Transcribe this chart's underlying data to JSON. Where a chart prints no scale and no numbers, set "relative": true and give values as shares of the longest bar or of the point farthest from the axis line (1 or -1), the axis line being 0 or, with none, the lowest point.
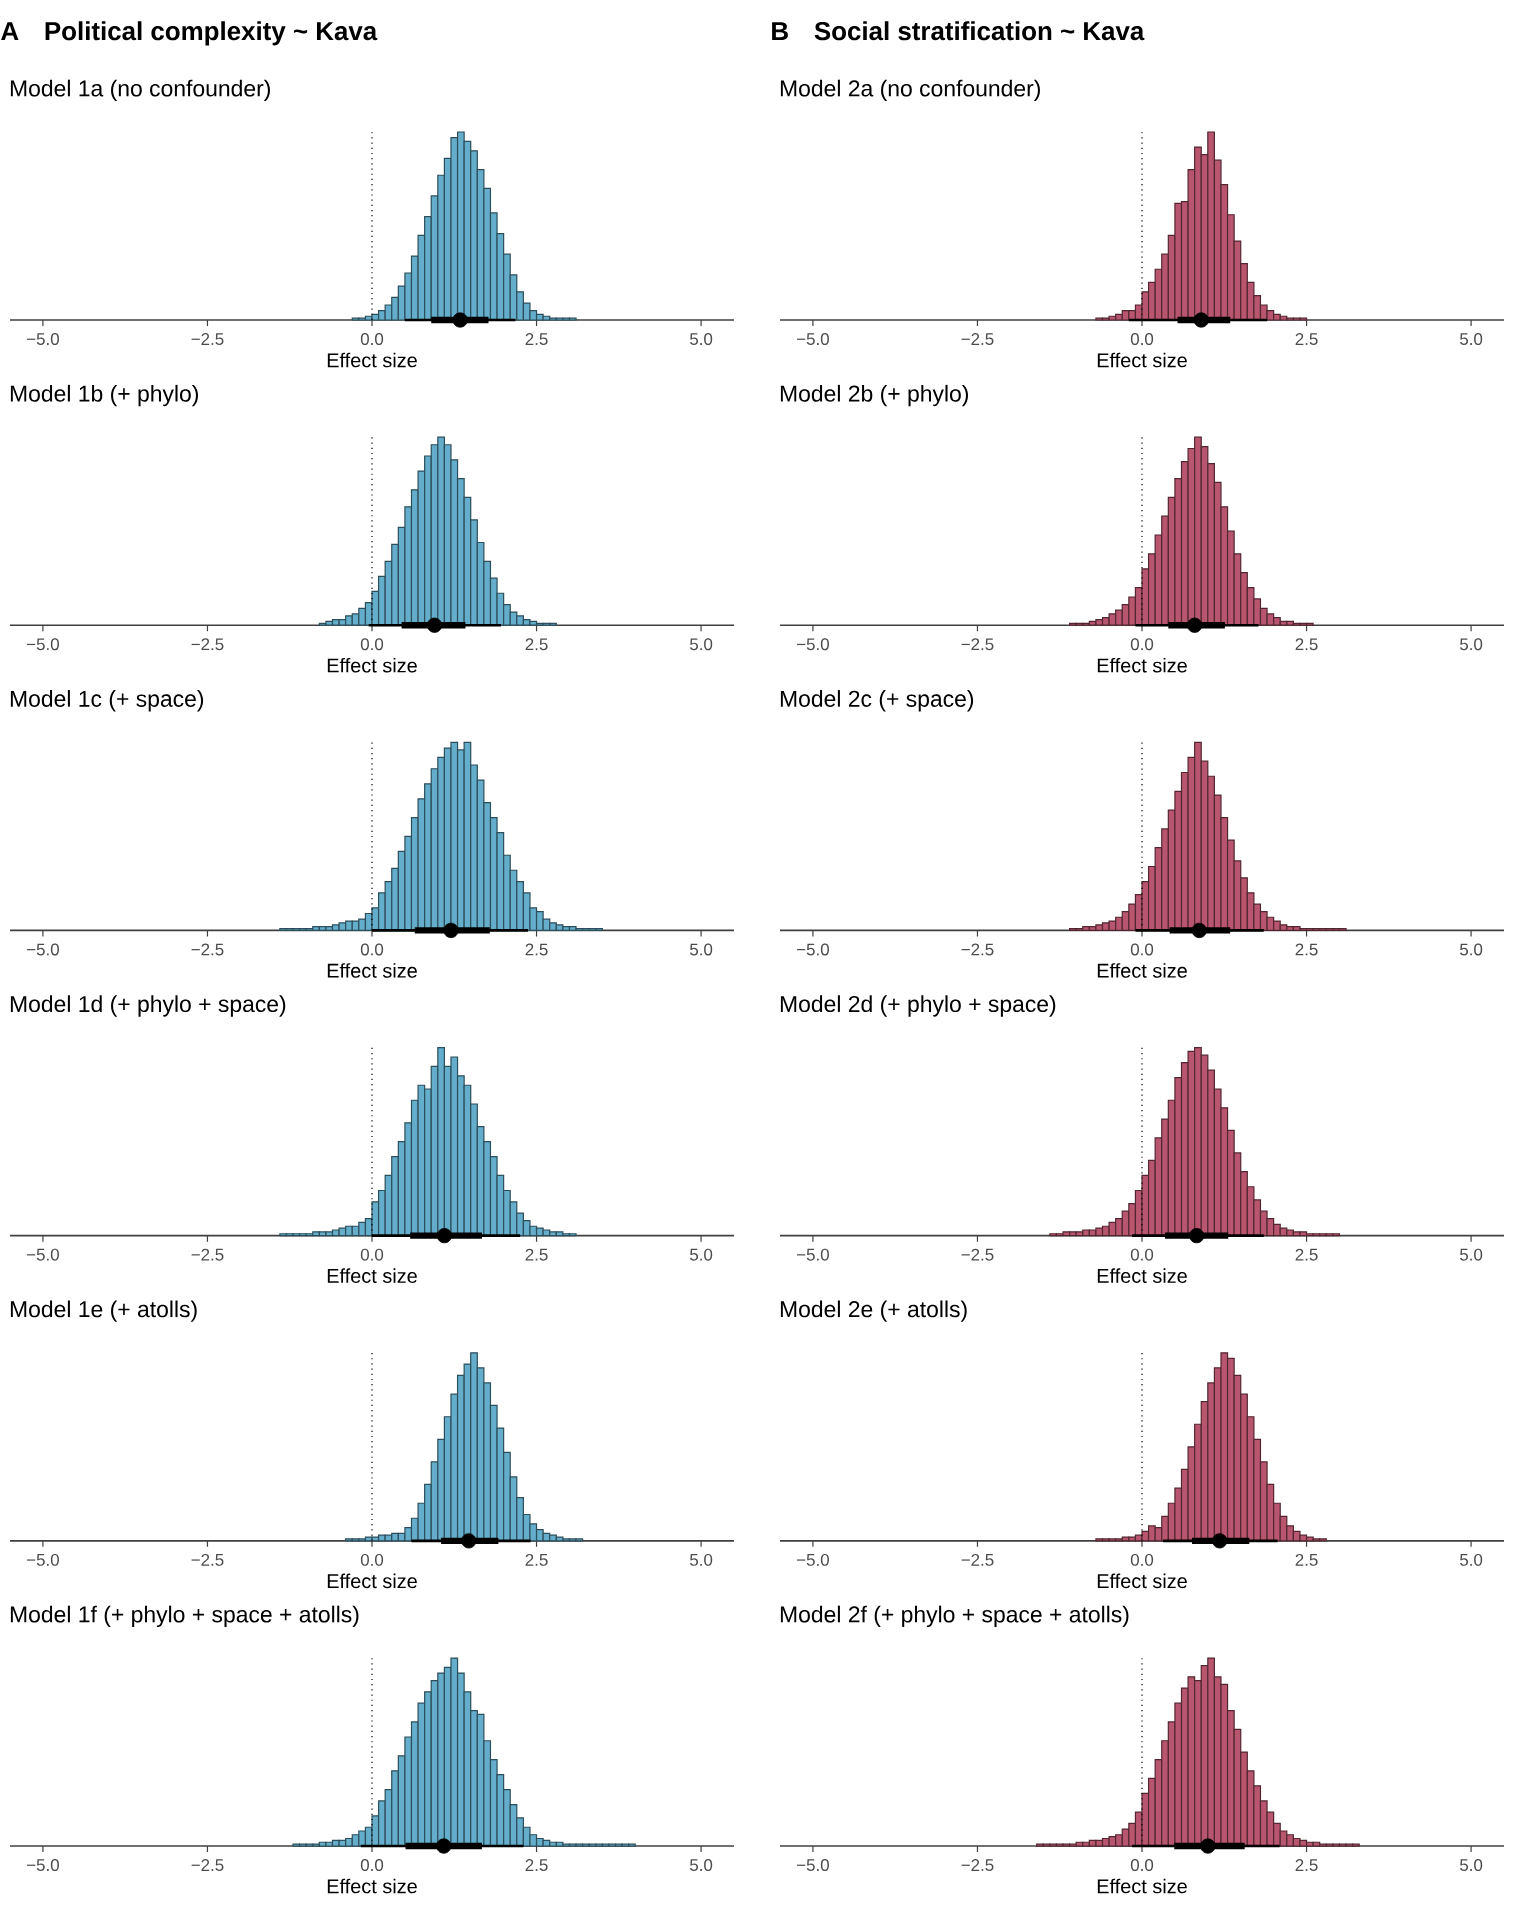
{
  "chart_data": [
    {
      "type": "bar",
      "relative": true,
      "title": "Model 1a (no confounder)",
      "annotations": [
        "A",
        "Political complexity ~ Kava"
      ],
      "xlabel": "Effect size",
      "color": "#64aecb",
      "xlim": [
        -5.5,
        5.5
      ],
      "xticks": [
        {
          "value": -5,
          "label": "−5.0"
        },
        {
          "value": -2.5,
          "label": "−2.5"
        },
        {
          "value": 0,
          "label": "0.0"
        },
        {
          "value": 2.5,
          "label": "2.5"
        },
        {
          "value": 5,
          "label": "5.0"
        }
      ],
      "ref_lines": [
        {
          "axis": "x",
          "value": 0,
          "line_style": "dotted"
        }
      ],
      "x": [
        -0.25,
        -0.15,
        -0.05,
        0.05,
        0.15,
        0.25,
        0.35,
        0.45,
        0.55,
        0.65,
        0.75,
        0.85,
        0.95,
        1.05,
        1.15,
        1.25,
        1.35,
        1.45,
        1.55,
        1.65,
        1.75,
        1.85,
        1.95,
        2.05,
        2.15,
        2.25,
        2.35,
        2.45,
        2.55,
        2.65,
        2.75,
        2.85,
        2.95,
        3.05
      ],
      "values": [
        0.01,
        0.01,
        0.02,
        0.03,
        0.05,
        0.08,
        0.12,
        0.18,
        0.25,
        0.34,
        0.45,
        0.55,
        0.66,
        0.77,
        0.86,
        0.97,
        1.0,
        0.95,
        0.9,
        0.8,
        0.7,
        0.57,
        0.46,
        0.35,
        0.24,
        0.15,
        0.09,
        0.05,
        0.03,
        0.02,
        0.01,
        0.01,
        0.01,
        0.01
      ],
      "series": [
        {
          "type": "line",
          "color": "#000000",
          "x": [
            0.5,
            2.18
          ],
          "values": [
            0,
            0
          ]
        },
        {
          "type": "line",
          "color": "#000000",
          "x": [
            0.9,
            1.77
          ],
          "values": [
            0,
            0
          ]
        },
        {
          "type": "scatter",
          "marker": "circle",
          "color": "#000000",
          "x": [
            1.34
          ],
          "values": [
            0
          ]
        }
      ]
    },
    {
      "type": "bar",
      "relative": true,
      "title": "Model 2a (no confounder)",
      "annotations": [
        "B",
        "Social stratification ~ Kava"
      ],
      "xlabel": "Effect size",
      "color": "#b9566f",
      "xlim": [
        -5.5,
        5.5
      ],
      "xticks": [
        {
          "value": -5,
          "label": "−5.0"
        },
        {
          "value": -2.5,
          "label": "−2.5"
        },
        {
          "value": 0,
          "label": "0.0"
        },
        {
          "value": 2.5,
          "label": "2.5"
        },
        {
          "value": 5,
          "label": "5.0"
        }
      ],
      "ref_lines": [
        {
          "axis": "x",
          "value": 0,
          "line_style": "dotted"
        }
      ],
      "x": [
        -0.65,
        -0.55,
        -0.45,
        -0.35,
        -0.25,
        -0.15,
        -0.05,
        0.05,
        0.15,
        0.25,
        0.35,
        0.45,
        0.55,
        0.65,
        0.75,
        0.85,
        0.95,
        1.05,
        1.15,
        1.25,
        1.35,
        1.45,
        1.55,
        1.65,
        1.75,
        1.85,
        1.95,
        2.05,
        2.15,
        2.25,
        2.35,
        2.45
      ],
      "values": [
        0.01,
        0.01,
        0.02,
        0.03,
        0.05,
        0.05,
        0.08,
        0.15,
        0.2,
        0.27,
        0.35,
        0.45,
        0.62,
        0.63,
        0.8,
        0.92,
        0.88,
        1.0,
        0.85,
        0.72,
        0.56,
        0.42,
        0.3,
        0.2,
        0.13,
        0.08,
        0.05,
        0.03,
        0.02,
        0.01,
        0.01,
        0.01
      ],
      "series": [
        {
          "type": "line",
          "color": "#000000",
          "x": [
            -0.2,
            1.9
          ],
          "values": [
            0,
            0
          ]
        },
        {
          "type": "line",
          "color": "#000000",
          "x": [
            0.54,
            1.34
          ],
          "values": [
            0,
            0
          ]
        },
        {
          "type": "scatter",
          "marker": "circle",
          "color": "#000000",
          "x": [
            0.9
          ],
          "values": [
            0
          ]
        }
      ]
    },
    {
      "type": "bar",
      "relative": true,
      "title": "Model 1b (+ phylo)",
      "xlabel": "Effect size",
      "color": "#64aecb",
      "xlim": [
        -5.5,
        5.5
      ],
      "xticks": [
        {
          "value": -5,
          "label": "−5.0"
        },
        {
          "value": -2.5,
          "label": "−2.5"
        },
        {
          "value": 0,
          "label": "0.0"
        },
        {
          "value": 2.5,
          "label": "2.5"
        },
        {
          "value": 5,
          "label": "5.0"
        }
      ],
      "ref_lines": [
        {
          "axis": "x",
          "value": 0,
          "line_style": "dotted"
        }
      ],
      "x": [
        -0.75,
        -0.65,
        -0.55,
        -0.45,
        -0.35,
        -0.25,
        -0.15,
        -0.05,
        0.05,
        0.15,
        0.25,
        0.35,
        0.45,
        0.55,
        0.65,
        0.75,
        0.85,
        0.95,
        1.05,
        1.15,
        1.25,
        1.35,
        1.45,
        1.55,
        1.65,
        1.75,
        1.85,
        1.95,
        2.05,
        2.15,
        2.25,
        2.35,
        2.45,
        2.55,
        2.65,
        2.75
      ],
      "values": [
        0.01,
        0.02,
        0.03,
        0.03,
        0.05,
        0.06,
        0.09,
        0.12,
        0.18,
        0.26,
        0.34,
        0.43,
        0.52,
        0.63,
        0.72,
        0.82,
        0.9,
        0.96,
        1.0,
        0.96,
        0.88,
        0.78,
        0.68,
        0.56,
        0.44,
        0.34,
        0.25,
        0.17,
        0.11,
        0.07,
        0.05,
        0.03,
        0.02,
        0.01,
        0.01,
        0.01
      ],
      "series": [
        {
          "type": "line",
          "color": "#000000",
          "x": [
            -0.05,
            1.96
          ],
          "values": [
            0,
            0
          ]
        },
        {
          "type": "line",
          "color": "#000000",
          "x": [
            0.45,
            1.42
          ],
          "values": [
            0,
            0
          ]
        },
        {
          "type": "scatter",
          "marker": "circle",
          "color": "#000000",
          "x": [
            0.95
          ],
          "values": [
            0
          ]
        }
      ]
    },
    {
      "type": "bar",
      "relative": true,
      "title": "Model 2b (+ phylo)",
      "xlabel": "Effect size",
      "color": "#b9566f",
      "xlim": [
        -5.5,
        5.5
      ],
      "xticks": [
        {
          "value": -5,
          "label": "−5.0"
        },
        {
          "value": -2.5,
          "label": "−2.5"
        },
        {
          "value": 0,
          "label": "0.0"
        },
        {
          "value": 2.5,
          "label": "2.5"
        },
        {
          "value": 5,
          "label": "5.0"
        }
      ],
      "ref_lines": [
        {
          "axis": "x",
          "value": 0,
          "line_style": "dotted"
        }
      ],
      "x": [
        -1.05,
        -0.95,
        -0.85,
        -0.75,
        -0.65,
        -0.55,
        -0.45,
        -0.35,
        -0.25,
        -0.15,
        -0.05,
        0.05,
        0.15,
        0.25,
        0.35,
        0.45,
        0.55,
        0.65,
        0.75,
        0.85,
        0.95,
        1.05,
        1.15,
        1.25,
        1.35,
        1.45,
        1.55,
        1.65,
        1.75,
        1.85,
        1.95,
        2.05,
        2.15,
        2.25,
        2.35,
        2.45,
        2.55
      ],
      "values": [
        0.01,
        0.01,
        0.01,
        0.02,
        0.03,
        0.04,
        0.06,
        0.08,
        0.11,
        0.15,
        0.2,
        0.3,
        0.38,
        0.48,
        0.58,
        0.68,
        0.78,
        0.87,
        0.94,
        1.0,
        0.95,
        0.86,
        0.76,
        0.63,
        0.5,
        0.38,
        0.28,
        0.2,
        0.14,
        0.09,
        0.06,
        0.04,
        0.02,
        0.02,
        0.01,
        0.01,
        0.01
      ],
      "series": [
        {
          "type": "line",
          "color": "#000000",
          "x": [
            -0.1,
            1.77
          ],
          "values": [
            0,
            0
          ]
        },
        {
          "type": "line",
          "color": "#000000",
          "x": [
            0.4,
            1.26
          ],
          "values": [
            0,
            0
          ]
        },
        {
          "type": "scatter",
          "marker": "circle",
          "color": "#000000",
          "x": [
            0.8
          ],
          "values": [
            0
          ]
        }
      ]
    },
    {
      "type": "bar",
      "relative": true,
      "title": "Model 1c (+ space)",
      "xlabel": "Effect size",
      "color": "#64aecb",
      "xlim": [
        -5.5,
        5.5
      ],
      "xticks": [
        {
          "value": -5,
          "label": "−5.0"
        },
        {
          "value": -2.5,
          "label": "−2.5"
        },
        {
          "value": 0,
          "label": "0.0"
        },
        {
          "value": 2.5,
          "label": "2.5"
        },
        {
          "value": 5,
          "label": "5.0"
        }
      ],
      "ref_lines": [
        {
          "axis": "x",
          "value": 0,
          "line_style": "dotted"
        }
      ],
      "x": [
        -1.35,
        -1.25,
        -1.15,
        -1.05,
        -0.95,
        -0.85,
        -0.75,
        -0.65,
        -0.55,
        -0.45,
        -0.35,
        -0.25,
        -0.15,
        -0.05,
        0.05,
        0.15,
        0.25,
        0.35,
        0.45,
        0.55,
        0.65,
        0.75,
        0.85,
        0.95,
        1.05,
        1.15,
        1.25,
        1.35,
        1.45,
        1.55,
        1.65,
        1.75,
        1.85,
        1.95,
        2.05,
        2.15,
        2.25,
        2.35,
        2.45,
        2.55,
        2.65,
        2.75,
        2.85,
        2.95,
        3.05,
        3.15,
        3.25,
        3.35,
        3.45
      ],
      "values": [
        0.01,
        0.01,
        0.01,
        0.01,
        0.01,
        0.02,
        0.02,
        0.02,
        0.03,
        0.04,
        0.05,
        0.05,
        0.06,
        0.09,
        0.12,
        0.2,
        0.26,
        0.33,
        0.42,
        0.5,
        0.6,
        0.7,
        0.78,
        0.86,
        0.92,
        0.97,
        1.0,
        0.96,
        1.0,
        0.88,
        0.8,
        0.68,
        0.6,
        0.52,
        0.4,
        0.32,
        0.26,
        0.2,
        0.12,
        0.1,
        0.06,
        0.04,
        0.03,
        0.02,
        0.02,
        0.01,
        0.01,
        0.01,
        0.01
      ],
      "series": [
        {
          "type": "line",
          "color": "#000000",
          "x": [
            0,
            2.37
          ],
          "values": [
            0,
            0
          ]
        },
        {
          "type": "line",
          "color": "#000000",
          "x": [
            0.65,
            1.79
          ],
          "values": [
            0,
            0
          ]
        },
        {
          "type": "scatter",
          "marker": "circle",
          "color": "#000000",
          "x": [
            1.2
          ],
          "values": [
            0
          ]
        }
      ]
    },
    {
      "type": "bar",
      "relative": true,
      "title": "Model 2c (+ space)",
      "xlabel": "Effect size",
      "color": "#b9566f",
      "xlim": [
        -5.5,
        5.5
      ],
      "xticks": [
        {
          "value": -5,
          "label": "−5.0"
        },
        {
          "value": -2.5,
          "label": "−2.5"
        },
        {
          "value": 0,
          "label": "0.0"
        },
        {
          "value": 2.5,
          "label": "2.5"
        },
        {
          "value": 5,
          "label": "5.0"
        }
      ],
      "ref_lines": [
        {
          "axis": "x",
          "value": 0,
          "line_style": "dotted"
        }
      ],
      "x": [
        -1.05,
        -0.95,
        -0.85,
        -0.75,
        -0.65,
        -0.55,
        -0.45,
        -0.35,
        -0.25,
        -0.15,
        -0.05,
        0.05,
        0.15,
        0.25,
        0.35,
        0.45,
        0.55,
        0.65,
        0.75,
        0.85,
        0.95,
        1.05,
        1.15,
        1.25,
        1.35,
        1.45,
        1.55,
        1.65,
        1.75,
        1.85,
        1.95,
        2.05,
        2.15,
        2.25,
        2.35,
        2.45,
        2.55,
        2.65,
        2.75,
        2.85,
        2.95,
        3.05
      ],
      "values": [
        0.01,
        0.01,
        0.02,
        0.02,
        0.03,
        0.04,
        0.05,
        0.07,
        0.1,
        0.14,
        0.19,
        0.26,
        0.34,
        0.44,
        0.54,
        0.64,
        0.74,
        0.84,
        0.92,
        1.0,
        0.9,
        0.82,
        0.72,
        0.6,
        0.48,
        0.37,
        0.28,
        0.2,
        0.14,
        0.1,
        0.07,
        0.05,
        0.03,
        0.02,
        0.02,
        0.01,
        0.01,
        0.01,
        0.01,
        0.01,
        0.01,
        0.01
      ],
      "series": [
        {
          "type": "line",
          "color": "#000000",
          "x": [
            -0.1,
            1.85
          ],
          "values": [
            0,
            0
          ]
        },
        {
          "type": "line",
          "color": "#000000",
          "x": [
            0.42,
            1.34
          ],
          "values": [
            0,
            0
          ]
        },
        {
          "type": "scatter",
          "marker": "circle",
          "color": "#000000",
          "x": [
            0.87
          ],
          "values": [
            0
          ]
        }
      ]
    },
    {
      "type": "bar",
      "relative": true,
      "title": "Model 1d (+ phylo + space)",
      "xlabel": "Effect size",
      "color": "#64aecb",
      "xlim": [
        -5.5,
        5.5
      ],
      "xticks": [
        {
          "value": -5,
          "label": "−5.0"
        },
        {
          "value": -2.5,
          "label": "−2.5"
        },
        {
          "value": 0,
          "label": "0.0"
        },
        {
          "value": 2.5,
          "label": "2.5"
        },
        {
          "value": 5,
          "label": "5.0"
        }
      ],
      "ref_lines": [
        {
          "axis": "x",
          "value": 0,
          "line_style": "dotted"
        }
      ],
      "x": [
        -1.35,
        -1.25,
        -1.15,
        -1.05,
        -0.95,
        -0.85,
        -0.75,
        -0.65,
        -0.55,
        -0.45,
        -0.35,
        -0.25,
        -0.15,
        -0.05,
        0.05,
        0.15,
        0.25,
        0.35,
        0.45,
        0.55,
        0.65,
        0.75,
        0.85,
        0.95,
        1.05,
        1.15,
        1.25,
        1.35,
        1.45,
        1.55,
        1.65,
        1.75,
        1.85,
        1.95,
        2.05,
        2.15,
        2.25,
        2.35,
        2.45,
        2.55,
        2.65,
        2.75,
        2.85,
        2.95,
        3.05
      ],
      "values": [
        0.01,
        0.01,
        0.01,
        0.01,
        0.01,
        0.02,
        0.02,
        0.02,
        0.03,
        0.04,
        0.05,
        0.05,
        0.07,
        0.09,
        0.18,
        0.24,
        0.32,
        0.42,
        0.5,
        0.6,
        0.72,
        0.8,
        0.78,
        0.9,
        1.0,
        0.9,
        0.95,
        0.85,
        0.8,
        0.7,
        0.58,
        0.5,
        0.42,
        0.32,
        0.24,
        0.18,
        0.12,
        0.08,
        0.05,
        0.04,
        0.03,
        0.02,
        0.02,
        0.01,
        0.01
      ],
      "series": [
        {
          "type": "line",
          "color": "#000000",
          "x": [
            0,
            2.25
          ],
          "values": [
            0,
            0
          ]
        },
        {
          "type": "line",
          "color": "#000000",
          "x": [
            0.58,
            1.67
          ],
          "values": [
            0,
            0
          ]
        },
        {
          "type": "scatter",
          "marker": "circle",
          "color": "#000000",
          "x": [
            1.1
          ],
          "values": [
            0
          ]
        }
      ]
    },
    {
      "type": "bar",
      "relative": true,
      "title": "Model 2d (+ phylo + space)",
      "xlabel": "Effect size",
      "color": "#b9566f",
      "xlim": [
        -5.5,
        5.5
      ],
      "xticks": [
        {
          "value": -5,
          "label": "−5.0"
        },
        {
          "value": -2.5,
          "label": "−2.5"
        },
        {
          "value": 0,
          "label": "0.0"
        },
        {
          "value": 2.5,
          "label": "2.5"
        },
        {
          "value": 5,
          "label": "5.0"
        }
      ],
      "ref_lines": [
        {
          "axis": "x",
          "value": 0,
          "line_style": "dotted"
        }
      ],
      "x": [
        -1.35,
        -1.25,
        -1.15,
        -1.05,
        -0.95,
        -0.85,
        -0.75,
        -0.65,
        -0.55,
        -0.45,
        -0.35,
        -0.25,
        -0.15,
        -0.05,
        0.05,
        0.15,
        0.25,
        0.35,
        0.45,
        0.55,
        0.65,
        0.75,
        0.85,
        0.95,
        1.05,
        1.15,
        1.25,
        1.35,
        1.45,
        1.55,
        1.65,
        1.75,
        1.85,
        1.95,
        2.05,
        2.15,
        2.25,
        2.35,
        2.45,
        2.55,
        2.65,
        2.75,
        2.85,
        2.95
      ],
      "values": [
        0.01,
        0.01,
        0.02,
        0.02,
        0.02,
        0.03,
        0.03,
        0.04,
        0.05,
        0.07,
        0.09,
        0.13,
        0.17,
        0.24,
        0.32,
        0.4,
        0.52,
        0.62,
        0.72,
        0.84,
        0.92,
        0.98,
        1.0,
        0.96,
        0.88,
        0.78,
        0.68,
        0.56,
        0.44,
        0.34,
        0.26,
        0.19,
        0.13,
        0.09,
        0.06,
        0.04,
        0.03,
        0.02,
        0.02,
        0.01,
        0.01,
        0.01,
        0.01,
        0.01
      ],
      "series": [
        {
          "type": "line",
          "color": "#000000",
          "x": [
            -0.15,
            1.85
          ],
          "values": [
            0,
            0
          ]
        },
        {
          "type": "line",
          "color": "#000000",
          "x": [
            0.35,
            1.31
          ],
          "values": [
            0,
            0
          ]
        },
        {
          "type": "scatter",
          "marker": "circle",
          "color": "#000000",
          "x": [
            0.83
          ],
          "values": [
            0
          ]
        }
      ]
    },
    {
      "type": "bar",
      "relative": true,
      "title": "Model 1e (+ atolls)",
      "xlabel": "Effect size",
      "color": "#64aecb",
      "xlim": [
        -5.5,
        5.5
      ],
      "xticks": [
        {
          "value": -5,
          "label": "−5.0"
        },
        {
          "value": -2.5,
          "label": "−2.5"
        },
        {
          "value": 0,
          "label": "0.0"
        },
        {
          "value": 2.5,
          "label": "2.5"
        },
        {
          "value": 5,
          "label": "5.0"
        }
      ],
      "ref_lines": [
        {
          "axis": "x",
          "value": 0,
          "line_style": "dotted"
        }
      ],
      "x": [
        -0.35,
        -0.25,
        -0.15,
        -0.05,
        0.05,
        0.15,
        0.25,
        0.35,
        0.45,
        0.55,
        0.65,
        0.75,
        0.85,
        0.95,
        1.05,
        1.15,
        1.25,
        1.35,
        1.45,
        1.55,
        1.65,
        1.75,
        1.85,
        1.95,
        2.05,
        2.15,
        2.25,
        2.35,
        2.45,
        2.55,
        2.65,
        2.75,
        2.85,
        2.95,
        3.05,
        3.15
      ],
      "values": [
        0.01,
        0.01,
        0.01,
        0.02,
        0.02,
        0.03,
        0.03,
        0.04,
        0.04,
        0.07,
        0.12,
        0.2,
        0.3,
        0.42,
        0.54,
        0.66,
        0.78,
        0.88,
        0.94,
        1.0,
        0.92,
        0.84,
        0.72,
        0.6,
        0.47,
        0.34,
        0.23,
        0.14,
        0.09,
        0.06,
        0.04,
        0.03,
        0.02,
        0.01,
        0.01,
        0.01
      ],
      "series": [
        {
          "type": "line",
          "color": "#000000",
          "x": [
            0.6,
            2.41
          ],
          "values": [
            0,
            0
          ]
        },
        {
          "type": "line",
          "color": "#000000",
          "x": [
            1.05,
            1.92
          ],
          "values": [
            0,
            0
          ]
        },
        {
          "type": "scatter",
          "marker": "circle",
          "color": "#000000",
          "x": [
            1.47
          ],
          "values": [
            0
          ]
        }
      ]
    },
    {
      "type": "bar",
      "relative": true,
      "title": "Model 2e (+ atolls)",
      "xlabel": "Effect size",
      "color": "#b9566f",
      "xlim": [
        -5.5,
        5.5
      ],
      "xticks": [
        {
          "value": -5,
          "label": "−5.0"
        },
        {
          "value": -2.5,
          "label": "−2.5"
        },
        {
          "value": 0,
          "label": "0.0"
        },
        {
          "value": 2.5,
          "label": "2.5"
        },
        {
          "value": 5,
          "label": "5.0"
        }
      ],
      "ref_lines": [
        {
          "axis": "x",
          "value": 0,
          "line_style": "dotted"
        }
      ],
      "x": [
        -0.65,
        -0.55,
        -0.45,
        -0.35,
        -0.25,
        -0.15,
        -0.05,
        0.05,
        0.15,
        0.25,
        0.35,
        0.45,
        0.55,
        0.65,
        0.75,
        0.85,
        0.95,
        1.05,
        1.15,
        1.25,
        1.35,
        1.45,
        1.55,
        1.65,
        1.75,
        1.85,
        1.95,
        2.05,
        2.15,
        2.25,
        2.35,
        2.45,
        2.55,
        2.65,
        2.75
      ],
      "values": [
        0.01,
        0.01,
        0.01,
        0.01,
        0.02,
        0.02,
        0.03,
        0.05,
        0.08,
        0.07,
        0.13,
        0.2,
        0.28,
        0.38,
        0.5,
        0.62,
        0.74,
        0.84,
        0.92,
        1.0,
        0.97,
        0.88,
        0.78,
        0.66,
        0.54,
        0.42,
        0.3,
        0.2,
        0.13,
        0.08,
        0.05,
        0.03,
        0.02,
        0.01,
        0.01
      ],
      "series": [
        {
          "type": "line",
          "color": "#000000",
          "x": [
            0.32,
            2.06
          ],
          "values": [
            0,
            0
          ]
        },
        {
          "type": "line",
          "color": "#000000",
          "x": [
            0.76,
            1.63
          ],
          "values": [
            0,
            0
          ]
        },
        {
          "type": "scatter",
          "marker": "circle",
          "color": "#000000",
          "x": [
            1.18
          ],
          "values": [
            0
          ]
        }
      ]
    },
    {
      "type": "bar",
      "relative": true,
      "title": "Model 1f (+ phylo + space + atolls)",
      "xlabel": "Effect size",
      "color": "#64aecb",
      "xlim": [
        -5.5,
        5.5
      ],
      "xticks": [
        {
          "value": -5,
          "label": "−5.0"
        },
        {
          "value": -2.5,
          "label": "−2.5"
        },
        {
          "value": 0,
          "label": "0.0"
        },
        {
          "value": 2.5,
          "label": "2.5"
        },
        {
          "value": 5,
          "label": "5.0"
        }
      ],
      "ref_lines": [
        {
          "axis": "x",
          "value": 0,
          "line_style": "dotted"
        }
      ],
      "x": [
        -1.15,
        -1.05,
        -0.95,
        -0.85,
        -0.75,
        -0.65,
        -0.55,
        -0.45,
        -0.35,
        -0.25,
        -0.15,
        -0.05,
        0.05,
        0.15,
        0.25,
        0.35,
        0.45,
        0.55,
        0.65,
        0.75,
        0.85,
        0.95,
        1.05,
        1.15,
        1.25,
        1.35,
        1.45,
        1.55,
        1.65,
        1.75,
        1.85,
        1.95,
        2.05,
        2.15,
        2.25,
        2.35,
        2.45,
        2.55,
        2.65,
        2.75,
        2.85,
        2.95,
        3.05,
        3.15,
        3.25,
        3.35,
        3.45,
        3.55,
        3.65,
        3.75,
        3.85,
        3.95
      ],
      "values": [
        0.01,
        0.01,
        0.01,
        0.01,
        0.02,
        0.02,
        0.03,
        0.03,
        0.04,
        0.06,
        0.08,
        0.1,
        0.16,
        0.24,
        0.3,
        0.4,
        0.48,
        0.58,
        0.66,
        0.76,
        0.82,
        0.88,
        0.92,
        0.95,
        1.0,
        0.92,
        0.82,
        0.72,
        0.7,
        0.56,
        0.46,
        0.38,
        0.3,
        0.22,
        0.15,
        0.1,
        0.06,
        0.04,
        0.03,
        0.02,
        0.02,
        0.01,
        0.01,
        0.01,
        0.01,
        0.01,
        0.01,
        0.01,
        0.01,
        0.01,
        0.01,
        0.01
      ],
      "series": [
        {
          "type": "line",
          "color": "#000000",
          "x": [
            -0.17,
            2.3
          ],
          "values": [
            0,
            0
          ]
        },
        {
          "type": "line",
          "color": "#000000",
          "x": [
            0.51,
            1.67
          ],
          "values": [
            0,
            0
          ]
        },
        {
          "type": "scatter",
          "marker": "circle",
          "color": "#000000",
          "x": [
            1.09
          ],
          "values": [
            0
          ]
        }
      ]
    },
    {
      "type": "bar",
      "relative": true,
      "title": "Model 2f (+ phylo + space + atolls)",
      "xlabel": "Effect size",
      "color": "#b9566f",
      "xlim": [
        -5.5,
        5.5
      ],
      "xticks": [
        {
          "value": -5,
          "label": "−5.0"
        },
        {
          "value": -2.5,
          "label": "−2.5"
        },
        {
          "value": 0,
          "label": "0.0"
        },
        {
          "value": 2.5,
          "label": "2.5"
        },
        {
          "value": 5,
          "label": "5.0"
        }
      ],
      "ref_lines": [
        {
          "axis": "x",
          "value": 0,
          "line_style": "dotted"
        }
      ],
      "x": [
        -1.55,
        -1.45,
        -1.35,
        -1.25,
        -1.15,
        -1.05,
        -0.95,
        -0.85,
        -0.75,
        -0.65,
        -0.55,
        -0.45,
        -0.35,
        -0.25,
        -0.15,
        -0.05,
        0.05,
        0.15,
        0.25,
        0.35,
        0.45,
        0.55,
        0.65,
        0.75,
        0.85,
        0.95,
        1.05,
        1.15,
        1.25,
        1.35,
        1.45,
        1.55,
        1.65,
        1.75,
        1.85,
        1.95,
        2.05,
        2.15,
        2.25,
        2.35,
        2.45,
        2.55,
        2.65,
        2.75,
        2.85,
        2.95,
        3.05,
        3.15,
        3.25
      ],
      "values": [
        0.01,
        0.01,
        0.01,
        0.01,
        0.01,
        0.01,
        0.02,
        0.02,
        0.03,
        0.03,
        0.04,
        0.05,
        0.06,
        0.09,
        0.12,
        0.18,
        0.28,
        0.36,
        0.46,
        0.56,
        0.66,
        0.76,
        0.84,
        0.9,
        0.88,
        0.96,
        1.0,
        0.9,
        0.86,
        0.72,
        0.62,
        0.5,
        0.4,
        0.32,
        0.24,
        0.18,
        0.12,
        0.08,
        0.06,
        0.04,
        0.03,
        0.02,
        0.02,
        0.01,
        0.01,
        0.01,
        0.01,
        0.01,
        0.01
      ],
      "series": [
        {
          "type": "line",
          "color": "#000000",
          "x": [
            -0.15,
            2.09
          ],
          "values": [
            0,
            0
          ]
        },
        {
          "type": "line",
          "color": "#000000",
          "x": [
            0.49,
            1.56
          ],
          "values": [
            0,
            0
          ]
        },
        {
          "type": "scatter",
          "marker": "circle",
          "color": "#000000",
          "x": [
            1.0
          ],
          "values": [
            0
          ]
        }
      ]
    }
  ]
}
